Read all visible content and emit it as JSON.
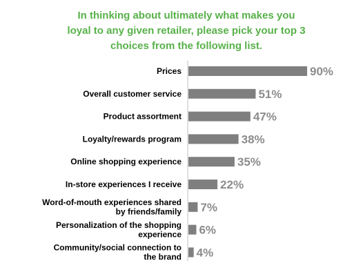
{
  "chart_data": {
    "type": "bar",
    "orientation": "horizontal",
    "title_lines": [
      "In thinking about ultimately what makes you",
      "loyal to any given retailer, please pick your top 3",
      "choices from the following list."
    ],
    "categories": [
      [
        "Prices"
      ],
      [
        "Overall customer service"
      ],
      [
        "Product assortment"
      ],
      [
        "Loyalty/rewards program"
      ],
      [
        "Online shopping experience"
      ],
      [
        "In-store experiences I receive"
      ],
      [
        "Word-of-mouth experiences shared",
        "by friends/family"
      ],
      [
        "Personalization of the shopping",
        "experience"
      ],
      [
        "Community/social connection to",
        "the brand"
      ]
    ],
    "values": [
      90,
      51,
      47,
      38,
      35,
      22,
      7,
      6,
      4
    ],
    "value_labels": [
      "90%",
      "51%",
      "47%",
      "38%",
      "35%",
      "22%",
      "7%",
      "6%",
      "4%"
    ],
    "xlim": [
      0,
      90
    ],
    "legend": "none",
    "grid": false,
    "colors": {
      "title": "#58b14a",
      "bar": "#7f7f7f",
      "value_label": "#8c8c8c",
      "axis": "#bfbfbf"
    }
  }
}
